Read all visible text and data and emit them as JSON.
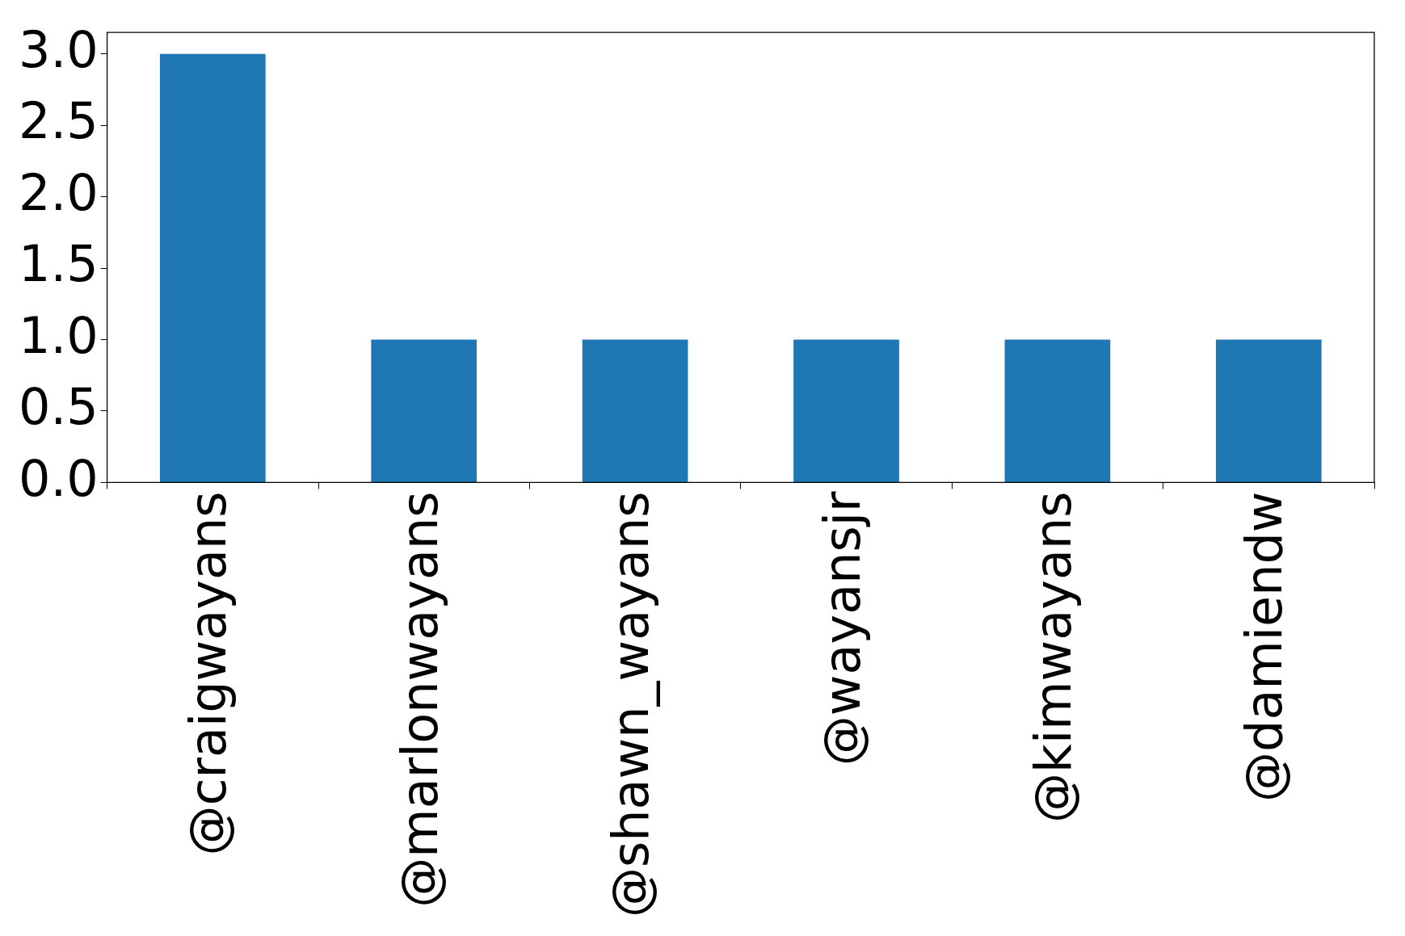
{
  "chart_data": {
    "type": "bar",
    "categories": [
      "@craigwayans",
      "@marlonwayans",
      "@shawn_wayans",
      "@wayansjr",
      "@kimwayans",
      "@damiendw"
    ],
    "values": [
      3,
      1,
      1,
      1,
      1,
      1
    ],
    "color": "#1f77b4",
    "ylim": [
      0,
      3.15
    ],
    "yticks": [
      {
        "value": 0,
        "label": "0.0"
      },
      {
        "value": 0.5,
        "label": "0.5"
      },
      {
        "value": 1,
        "label": "1.0"
      },
      {
        "value": 1.5,
        "label": "1.5"
      },
      {
        "value": 2,
        "label": "2.0"
      },
      {
        "value": 2.5,
        "label": "2.5"
      },
      {
        "value": 3,
        "label": "3.0"
      }
    ],
    "grid": false,
    "legend": false
  }
}
